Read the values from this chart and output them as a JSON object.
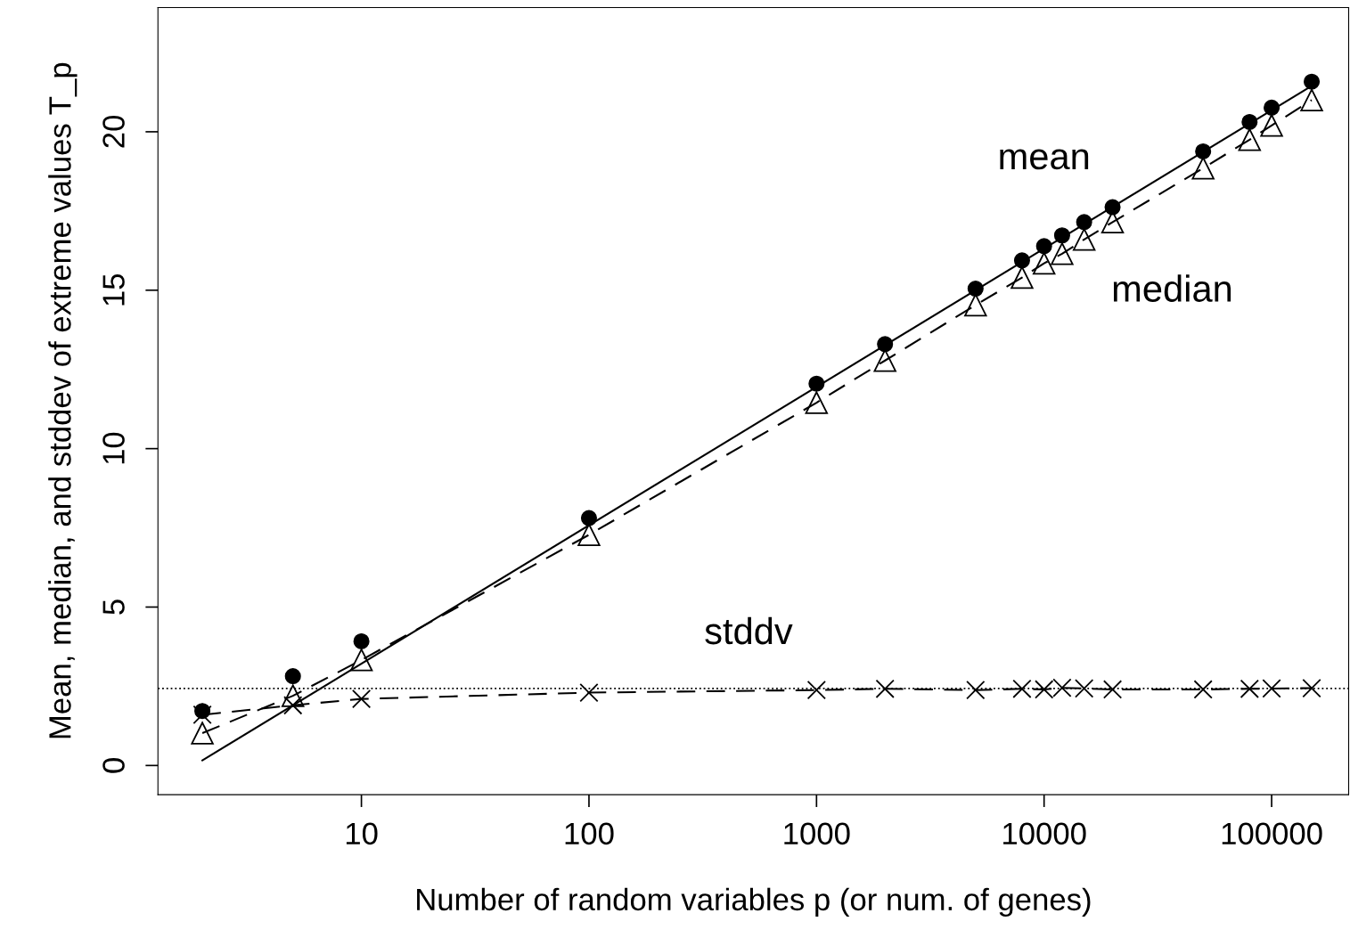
{
  "chart_data": {
    "type": "scatter",
    "xlabel": "Number of random variables p (or num. of genes)",
    "ylabel": "Mean, median, and stddev of extreme values T_p",
    "x": [
      2,
      5,
      10,
      100,
      1000,
      2000,
      5000,
      8000,
      10000,
      12000,
      15000,
      20000,
      50000,
      80000,
      100000,
      150000
    ],
    "series": [
      {
        "name": "mean",
        "color": "#000000",
        "marker": "circle",
        "values": [
          1.72,
          2.82,
          3.92,
          7.81,
          12.05,
          13.3,
          15.05,
          15.94,
          16.39,
          16.73,
          17.15,
          17.62,
          19.38,
          20.31,
          20.76,
          21.58
        ]
      },
      {
        "name": "median",
        "type": "line",
        "color": "#000000",
        "marker": "triangle",
        "line_style": "dashed",
        "values": [
          1.02,
          2.2,
          3.33,
          7.28,
          11.45,
          12.78,
          14.53,
          15.4,
          15.85,
          16.15,
          16.6,
          17.15,
          18.85,
          19.75,
          20.2,
          21.0
        ]
      },
      {
        "name": "stddv",
        "type": "line",
        "color": "#000000",
        "marker": "cross",
        "line_style": "dashed",
        "values": [
          1.6,
          1.9,
          2.1,
          2.3,
          2.38,
          2.42,
          2.38,
          2.42,
          2.4,
          2.45,
          2.43,
          2.4,
          2.4,
          2.42,
          2.43,
          2.44
        ]
      },
      {
        "type": "line",
        "color": "#000000",
        "marker": "none",
        "line_style": "solid",
        "x": [
          2,
          150000
        ],
        "values": [
          0.16,
          21.45
        ]
      }
    ],
    "ref_lines": [
      {
        "axis": "y",
        "value": 2.43,
        "color": "#000000",
        "line_style": "dotted"
      }
    ],
    "log": "x",
    "xlim": [
      1.276,
      218000
    ],
    "ylim": [
      -0.92,
      23.92
    ],
    "xticks": [
      10,
      100,
      1000,
      10000,
      100000
    ],
    "yticks": [
      0,
      5,
      10,
      15,
      20
    ],
    "grid": false,
    "legend": false
  }
}
